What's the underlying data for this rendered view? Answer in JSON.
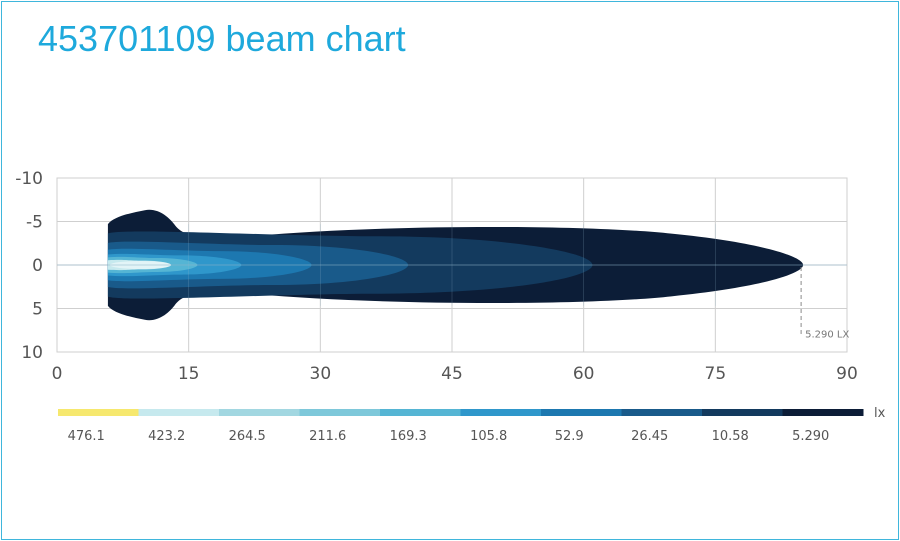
{
  "chart_data": {
    "type": "heatmap",
    "title": "453701109 beam chart",
    "x_ticks": [
      0,
      15,
      30,
      45,
      60,
      75,
      90
    ],
    "y_ticks": [
      -10,
      -5,
      0,
      5,
      10
    ],
    "xlim": [
      0,
      90
    ],
    "ylim": [
      -10,
      10
    ],
    "grid": true,
    "legend_unit": "lx",
    "legend_placement": "bottom",
    "legend": [
      {
        "label": "476.1",
        "color": "#f6e86e"
      },
      {
        "label": "423.2",
        "color": "#c6e9ee"
      },
      {
        "label": "264.5",
        "color": "#a2d7e1"
      },
      {
        "label": "211.6",
        "color": "#7ec8da"
      },
      {
        "label": "169.3",
        "color": "#55b5d4"
      },
      {
        "label": "105.8",
        "color": "#2f97cb"
      },
      {
        "label": "52.9",
        "color": "#1d78b0"
      },
      {
        "label": "26.45",
        "color": "#195a8a"
      },
      {
        "label": "10.58",
        "color": "#133a5e"
      },
      {
        "label": "5.290",
        "color": "#0c1d37"
      }
    ],
    "annotation": {
      "text": "5.290 LX",
      "x": 85
    },
    "contours": [
      {
        "level": "5.290",
        "reach": 85,
        "halfwidth": 4.7
      },
      {
        "level": "10.58",
        "reach": 61,
        "halfwidth": 3.3
      },
      {
        "level": "26.45",
        "reach": 40,
        "halfwidth": 2.3
      },
      {
        "level": "52.9",
        "reach": 29,
        "halfwidth": 1.6
      },
      {
        "level": "105.8",
        "reach": 21,
        "halfwidth": 1.1
      },
      {
        "level": "169.3",
        "reach": 16,
        "halfwidth": 0.8
      },
      {
        "level": "423.2",
        "reach": 13,
        "halfwidth": 0.5
      }
    ]
  }
}
